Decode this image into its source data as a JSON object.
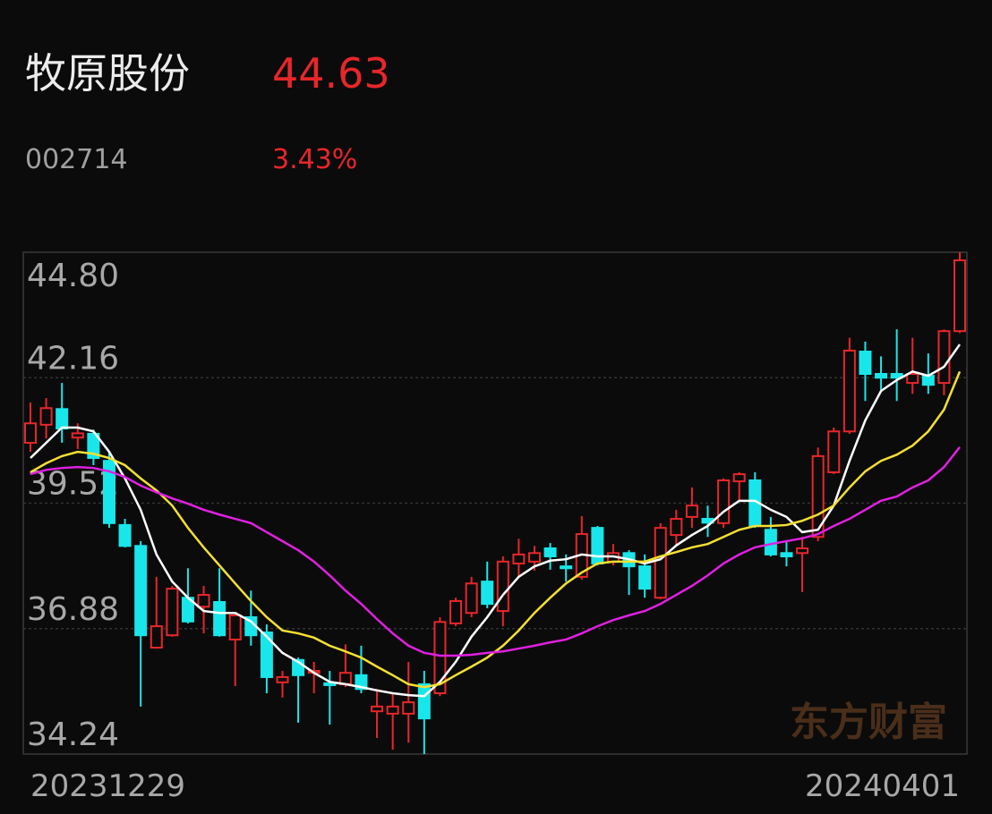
{
  "header": {
    "name": "牧原股份",
    "price": "44.63",
    "code": "002714",
    "change": "3.43%"
  },
  "watermark": "东方财富",
  "chart_data": {
    "type": "candlestick",
    "categories": [
      "20231229",
      null,
      null,
      null,
      null,
      null,
      null,
      null,
      null,
      null,
      null,
      null,
      null,
      null,
      null,
      null,
      null,
      null,
      null,
      null,
      null,
      null,
      null,
      null,
      null,
      null,
      null,
      null,
      null,
      null,
      null,
      null,
      null,
      null,
      null,
      null,
      null,
      null,
      null,
      null,
      null,
      null,
      null,
      null,
      null,
      null,
      null,
      null,
      null,
      null,
      null,
      null,
      null,
      null,
      null,
      null,
      null,
      null,
      null,
      "20240401"
    ],
    "open": [
      40.79,
      41.17,
      41.5,
      40.9,
      40.98,
      40.41,
      39.06,
      38.62,
      36.48,
      36.74,
      37.53,
      37.34,
      37.44,
      36.65,
      37.12,
      36.8,
      35.75,
      36.22,
      35.95,
      35.73,
      35.71,
      35.9,
      35.14,
      35.09,
      35.09,
      35.71,
      35.52,
      36.99,
      37.21,
      37.87,
      37.25,
      38.25,
      38.29,
      38.57,
      38.19,
      37.97,
      39.0,
      38.29,
      38.47,
      38.19,
      37.53,
      38.85,
      39.23,
      39.19,
      39.1,
      39.98,
      40.0,
      38.96,
      38.47,
      38.47,
      38.81,
      40.17,
      41.03,
      42.71,
      42.24,
      42.24,
      42.05,
      42.2,
      42.05,
      43.14
    ],
    "high": [
      41.64,
      41.73,
      42.05,
      41.2,
      41.07,
      40.6,
      39.19,
      38.72,
      37.97,
      37.78,
      38.15,
      37.78,
      38.15,
      37.21,
      37.68,
      36.97,
      35.99,
      36.27,
      36.18,
      35.99,
      36.55,
      36.52,
      35.61,
      35.52,
      36.18,
      35.99,
      37.12,
      37.53,
      37.97,
      38.29,
      38.4,
      38.77,
      38.62,
      38.68,
      38.44,
      39.25,
      39.04,
      38.66,
      38.53,
      38.44,
      39.1,
      39.38,
      39.85,
      39.47,
      40.04,
      40.17,
      40.17,
      39.23,
      38.72,
      38.81,
      40.69,
      41.11,
      43.0,
      42.92,
      42.61,
      43.18,
      43.0,
      42.67,
      43.18,
      44.8
    ],
    "low": [
      40.6,
      40.88,
      40.79,
      40.66,
      40.32,
      39.0,
      38.59,
      35.24,
      36.46,
      36.71,
      36.99,
      36.78,
      36.71,
      35.67,
      36.52,
      35.52,
      35.43,
      34.9,
      35.52,
      34.86,
      35.65,
      35.52,
      34.58,
      34.33,
      34.48,
      34.24,
      35.46,
      36.93,
      37.12,
      37.31,
      36.93,
      37.97,
      38.1,
      38.12,
      37.87,
      37.91,
      38.21,
      38.21,
      37.59,
      37.53,
      37.5,
      38.62,
      39.0,
      38.81,
      39.0,
      39.57,
      39.0,
      38.4,
      38.19,
      37.65,
      38.72,
      40.13,
      40.98,
      41.67,
      41.86,
      41.67,
      41.82,
      41.82,
      41.79,
      43.1
    ],
    "close": [
      41.2,
      41.52,
      41.09,
      40.99,
      40.47,
      39.1,
      38.62,
      36.74,
      36.93,
      37.72,
      37.03,
      37.59,
      36.74,
      37.16,
      36.74,
      35.86,
      35.86,
      35.9,
      35.99,
      35.69,
      35.95,
      35.61,
      35.24,
      35.24,
      35.33,
      34.99,
      37.02,
      37.46,
      37.83,
      37.4,
      38.29,
      38.44,
      38.47,
      38.4,
      38.15,
      38.87,
      38.25,
      38.47,
      38.19,
      37.72,
      39.0,
      39.19,
      39.47,
      39.11,
      40.0,
      40.13,
      39.04,
      38.44,
      38.4,
      38.57,
      40.51,
      41.03,
      42.73,
      42.24,
      42.16,
      42.16,
      42.24,
      42.01,
      43.14,
      44.63
    ],
    "up_color": "#e8262a",
    "down_color": "#19e6ea",
    "series": [
      {
        "color": "#ffffff",
        "values": [
          40.47,
          40.79,
          41.11,
          41.11,
          41.03,
          40.6,
          40.04,
          39.38,
          38.44,
          37.87,
          37.53,
          37.25,
          37.21,
          37.21,
          37.03,
          36.71,
          36.37,
          36.18,
          35.95,
          35.76,
          35.71,
          35.65,
          35.58,
          35.52,
          35.48,
          35.46,
          35.76,
          36.18,
          36.71,
          37.12,
          37.59,
          37.97,
          38.19,
          38.31,
          38.34,
          38.44,
          38.4,
          38.4,
          38.34,
          38.25,
          38.34,
          38.63,
          38.85,
          39.04,
          39.34,
          39.57,
          39.57,
          39.38,
          39.23,
          38.91,
          38.96,
          39.47,
          40.41,
          41.26,
          41.88,
          42.11,
          42.29,
          42.2,
          42.39,
          42.86
        ]
      },
      {
        "color": "#f5e030",
        "values": [
          40.17,
          40.36,
          40.51,
          40.6,
          40.56,
          40.47,
          40.32,
          40.04,
          39.79,
          39.47,
          39.0,
          38.59,
          38.21,
          37.83,
          37.46,
          37.12,
          36.84,
          36.78,
          36.69,
          36.52,
          36.4,
          36.27,
          36.08,
          35.9,
          35.71,
          35.65,
          35.71,
          35.9,
          36.08,
          36.27,
          36.52,
          36.84,
          37.21,
          37.53,
          37.83,
          38.06,
          38.25,
          38.29,
          38.29,
          38.29,
          38.4,
          38.49,
          38.59,
          38.66,
          38.81,
          38.96,
          39.04,
          39.04,
          39.06,
          39.15,
          39.28,
          39.47,
          39.85,
          40.19,
          40.41,
          40.54,
          40.73,
          41.03,
          41.49,
          42.29
        ]
      },
      {
        "color": "#e020e0",
        "values": [
          40.13,
          40.22,
          40.26,
          40.28,
          40.26,
          40.19,
          40.07,
          39.89,
          39.75,
          39.62,
          39.51,
          39.38,
          39.28,
          39.19,
          39.1,
          38.91,
          38.72,
          38.53,
          38.29,
          38.0,
          37.68,
          37.4,
          37.08,
          36.78,
          36.52,
          36.37,
          36.31,
          36.31,
          36.33,
          36.37,
          36.4,
          36.46,
          36.52,
          36.59,
          36.65,
          36.78,
          36.93,
          37.06,
          37.16,
          37.25,
          37.4,
          37.59,
          37.78,
          38.0,
          38.25,
          38.44,
          38.59,
          38.66,
          38.72,
          38.78,
          38.87,
          39.04,
          39.19,
          39.38,
          39.57,
          39.66,
          39.85,
          40.0,
          40.28,
          40.7
        ]
      }
    ],
    "ylim": [
      34.24,
      44.8
    ],
    "yticks": [
      {
        "value": 44.8,
        "label": "44.80"
      },
      42.16,
      39.52,
      36.88,
      34.24
    ],
    "grid": true
  }
}
